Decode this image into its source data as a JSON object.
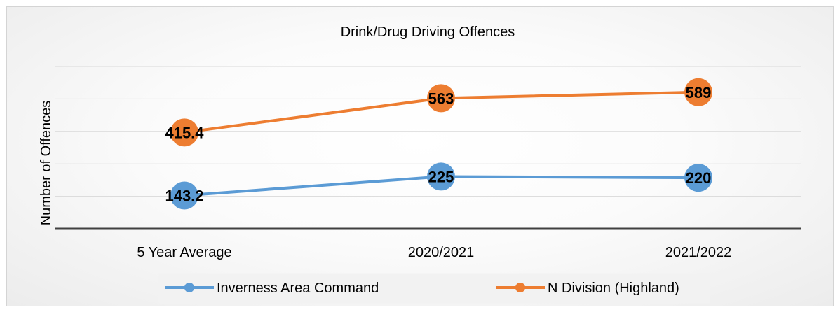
{
  "chart_data": {
    "type": "line",
    "title": "Drink/Drug Driving Offences",
    "xlabel": "",
    "ylabel": "Number of Offences",
    "categories": [
      "5 Year Average",
      "2020/2021",
      "2021/2022"
    ],
    "ylim": [
      0,
      700
    ],
    "grid": true,
    "legend": "bottom",
    "data_labels": true,
    "series": [
      {
        "name": "Inverness Area Command",
        "values": [
          143.2,
          225,
          220
        ],
        "labels": [
          "143.2",
          "225",
          "220"
        ],
        "color": "#5b9bd5"
      },
      {
        "name": "N Division (Highland)",
        "values": [
          415.4,
          563,
          589
        ],
        "labels": [
          "415.4",
          "563",
          "589"
        ],
        "color": "#ed7d31"
      }
    ]
  }
}
